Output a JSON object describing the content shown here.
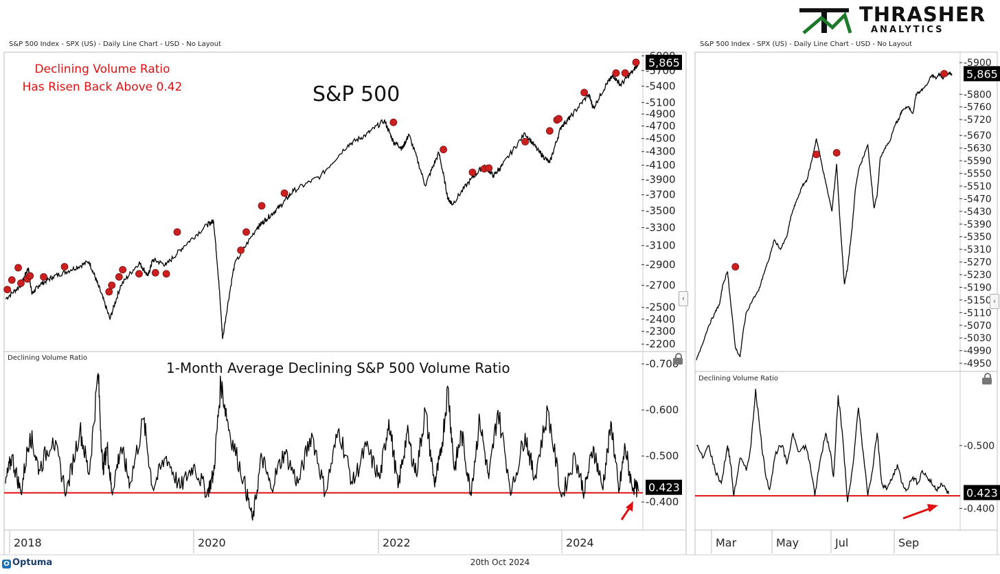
{
  "brand": {
    "logo_word": "THRASHER",
    "logo_sub": "ANALYTICS",
    "footer_brand": "Optuma",
    "footer_date": "20th Oct 2024"
  },
  "colors": {
    "price_line": "#000000",
    "marker": "#cc1f1f",
    "threshold_line": "#e01010",
    "annotation": "#e01010",
    "grid_border": "#bbbbbb"
  },
  "chart_data": [
    {
      "type": "line",
      "panel": "left-top",
      "header": "S&P 500 Index - SPX (US) - Daily Line Chart - USD - No Layout",
      "title": "S&P 500",
      "annotation": [
        "Declining Volume Ratio",
        "Has Risen Back Above 0.42"
      ],
      "scale": "log",
      "ylim": [
        2180,
        5990
      ],
      "y_ticks": [
        "6000",
        "5700",
        "5400",
        "5100",
        "4900",
        "4700",
        "4500",
        "4300",
        "4100",
        "3900",
        "3700",
        "3500",
        "3300",
        "3100",
        "2900",
        "2700",
        "2500",
        "2400",
        "2300",
        "2200"
      ],
      "last_value_label": "5,865",
      "x_range": [
        2017.83,
        2024.8
      ],
      "x_ticks": [
        "2018",
        "2020",
        "2022",
        "2024"
      ],
      "series": [
        {
          "name": "SPX",
          "x": [
            2017.83,
            2018.0,
            2018.08,
            2018.12,
            2018.2,
            2018.35,
            2018.55,
            2018.75,
            2018.85,
            2018.98,
            2019.1,
            2019.3,
            2019.4,
            2019.45,
            2019.6,
            2019.8,
            2020.05,
            2020.12,
            2020.18,
            2020.22,
            2020.35,
            2020.6,
            2020.7,
            2020.85,
            2021.0,
            2021.3,
            2021.6,
            2021.8,
            2022.0,
            2022.1,
            2022.2,
            2022.27,
            2022.45,
            2022.6,
            2022.7,
            2022.75,
            2022.95,
            2023.1,
            2023.2,
            2023.3,
            2023.55,
            2023.7,
            2023.82,
            2023.95,
            2024.05,
            2024.25,
            2024.3,
            2024.45,
            2024.52,
            2024.6,
            2024.75,
            2024.8
          ],
          "values": [
            2575,
            2700,
            2870,
            2620,
            2700,
            2780,
            2850,
            2930,
            2700,
            2400,
            2700,
            2920,
            2790,
            2950,
            2900,
            3100,
            3330,
            3380,
            2700,
            2240,
            2900,
            3300,
            3400,
            3550,
            3750,
            3950,
            4400,
            4560,
            4790,
            4450,
            4350,
            4560,
            3820,
            4280,
            3650,
            3580,
            3900,
            4100,
            3950,
            4100,
            4580,
            4300,
            4130,
            4700,
            4850,
            5250,
            5000,
            5450,
            5600,
            5420,
            5720,
            5865
          ]
        }
      ],
      "markers_x": [
        2017.85,
        2017.9,
        2017.97,
        2018.0,
        2018.07,
        2018.1,
        2018.25,
        2018.48,
        2018.97,
        2019.0,
        2019.08,
        2019.12,
        2019.3,
        2019.48,
        2019.6,
        2019.72,
        2020.42,
        2020.48,
        2020.65,
        2020.9,
        2022.1,
        2022.65,
        2022.97,
        2023.1,
        2023.15,
        2023.55,
        2023.82,
        2023.9,
        2023.92,
        2024.2,
        2024.55,
        2024.65,
        2024.77
      ],
      "markers_y": [
        2660,
        2750,
        2870,
        2720,
        2760,
        2790,
        2780,
        2880,
        2640,
        2700,
        2780,
        2850,
        2810,
        2820,
        2810,
        3250,
        3050,
        3250,
        3560,
        3720,
        4760,
        4330,
        4000,
        4050,
        4060,
        4450,
        4620,
        4800,
        4820,
        5280,
        5650,
        5650,
        5865
      ]
    },
    {
      "type": "line",
      "panel": "left-bottom",
      "header": "Declining Volume Ratio",
      "title": "1-Month Average Declining S&P 500 Volume Ratio",
      "ylim": [
        0.345,
        0.715
      ],
      "y_ticks": [
        "0.700",
        "0.600",
        "0.500",
        "0.400"
      ],
      "threshold": 0.42,
      "last_value_label": "0.423",
      "series": [
        {
          "name": "Declining Volume Ratio",
          "x": [
            2017.83,
            2017.9,
            2018.0,
            2018.1,
            2018.2,
            2018.35,
            2018.5,
            2018.65,
            2018.75,
            2018.85,
            2018.9,
            2018.95,
            2019.0,
            2019.1,
            2019.2,
            2019.35,
            2019.45,
            2019.6,
            2019.75,
            2019.9,
            2020.05,
            2020.12,
            2020.2,
            2020.3,
            2020.45,
            2020.55,
            2020.65,
            2020.75,
            2020.9,
            2021.05,
            2021.2,
            2021.35,
            2021.5,
            2021.65,
            2021.8,
            2021.95,
            2022.05,
            2022.15,
            2022.25,
            2022.35,
            2022.45,
            2022.55,
            2022.62,
            2022.7,
            2022.77,
            2022.85,
            2022.95,
            2023.05,
            2023.15,
            2023.25,
            2023.4,
            2023.55,
            2023.65,
            2023.8,
            2023.95,
            2024.1,
            2024.2,
            2024.3,
            2024.4,
            2024.5,
            2024.58,
            2024.65,
            2024.72,
            2024.8
          ],
          "values": [
            0.44,
            0.5,
            0.42,
            0.55,
            0.47,
            0.54,
            0.42,
            0.56,
            0.46,
            0.68,
            0.47,
            0.52,
            0.42,
            0.52,
            0.44,
            0.58,
            0.43,
            0.5,
            0.43,
            0.48,
            0.42,
            0.46,
            0.66,
            0.55,
            0.45,
            0.36,
            0.5,
            0.43,
            0.51,
            0.44,
            0.55,
            0.42,
            0.56,
            0.44,
            0.52,
            0.45,
            0.58,
            0.43,
            0.55,
            0.46,
            0.6,
            0.44,
            0.5,
            0.65,
            0.47,
            0.55,
            0.42,
            0.58,
            0.45,
            0.6,
            0.42,
            0.55,
            0.45,
            0.6,
            0.41,
            0.5,
            0.42,
            0.52,
            0.43,
            0.57,
            0.42,
            0.52,
            0.44,
            0.423
          ]
        }
      ]
    },
    {
      "type": "line",
      "panel": "right-top",
      "header": "S&P 500 Index - SPX (US) - Daily Line Chart - USD - No Layout",
      "ylim": [
        4935,
        5920
      ],
      "y_ticks": [
        "5900",
        "5800",
        "5760",
        "5720",
        "5670",
        "5630",
        "5590",
        "5550",
        "5510",
        "5470",
        "5430",
        "5390",
        "5350",
        "5310",
        "5270",
        "5230",
        "5190",
        "5150",
        "5110",
        "5070",
        "5030",
        "4990",
        "4950"
      ],
      "last_value_label": "5,865",
      "x_range": [
        2.0,
        10.2
      ],
      "x_ticks": [
        "Mar",
        "May",
        "Jul",
        "Sep"
      ],
      "series": [
        {
          "name": "SPX",
          "x": [
            2.0,
            2.15,
            2.4,
            2.6,
            2.75,
            2.85,
            3.0,
            3.1,
            3.25,
            3.4,
            3.5,
            3.6,
            3.8,
            4.0,
            4.15,
            4.3,
            4.5,
            4.7,
            4.9,
            5.05,
            5.2,
            5.4,
            5.55,
            5.7,
            5.85,
            6.0,
            6.15,
            6.35,
            6.5,
            6.6,
            6.75,
            6.85,
            7.0,
            7.1,
            7.2,
            7.35,
            7.5,
            7.6,
            7.7,
            7.8,
            7.9,
            8.05,
            8.2,
            8.4,
            8.5,
            8.6,
            8.8,
            8.95,
            9.05,
            9.2,
            9.4,
            9.55,
            9.7,
            9.8,
            9.9,
            10.0,
            10.1,
            10.2
          ],
          "values": [
            4960,
            5000,
            5070,
            5110,
            5140,
            5200,
            5240,
            5140,
            5000,
            4970,
            5050,
            5110,
            5150,
            5180,
            5230,
            5270,
            5340,
            5310,
            5350,
            5420,
            5460,
            5510,
            5530,
            5590,
            5660,
            5590,
            5520,
            5430,
            5580,
            5410,
            5200,
            5250,
            5380,
            5500,
            5560,
            5600,
            5640,
            5540,
            5440,
            5480,
            5600,
            5630,
            5650,
            5710,
            5720,
            5750,
            5760,
            5740,
            5800,
            5810,
            5830,
            5860,
            5850,
            5865,
            5850,
            5865,
            5865,
            5865
          ]
        }
      ],
      "markers_x": [
        3.25,
        5.85,
        6.5,
        9.95
      ],
      "markers_y": [
        5255,
        5610,
        5615,
        5865
      ]
    },
    {
      "type": "line",
      "panel": "right-bottom",
      "header": "Declining Volume Ratio",
      "ylim": [
        0.37,
        0.61
      ],
      "y_ticks": [
        "0.500",
        "0.400"
      ],
      "threshold": 0.42,
      "last_value_label": "0.423",
      "series": [
        {
          "name": "Declining Volume Ratio",
          "x": [
            2.0,
            2.2,
            2.4,
            2.6,
            2.8,
            3.0,
            3.1,
            3.2,
            3.4,
            3.6,
            3.75,
            3.9,
            4.05,
            4.2,
            4.35,
            4.55,
            4.75,
            4.9,
            5.1,
            5.3,
            5.5,
            5.65,
            5.8,
            5.95,
            6.15,
            6.3,
            6.4,
            6.55,
            6.7,
            6.85,
            7.05,
            7.2,
            7.35,
            7.5,
            7.65,
            7.8,
            7.95,
            8.1,
            8.3,
            8.45,
            8.6,
            8.75,
            8.95,
            9.1,
            9.25,
            9.4,
            9.55,
            9.7,
            9.85,
            10.0,
            10.1
          ],
          "values": [
            0.5,
            0.48,
            0.5,
            0.46,
            0.44,
            0.5,
            0.47,
            0.42,
            0.48,
            0.46,
            0.5,
            0.59,
            0.52,
            0.46,
            0.43,
            0.49,
            0.5,
            0.47,
            0.52,
            0.49,
            0.5,
            0.47,
            0.42,
            0.47,
            0.52,
            0.49,
            0.45,
            0.58,
            0.51,
            0.41,
            0.48,
            0.56,
            0.49,
            0.42,
            0.46,
            0.52,
            0.44,
            0.43,
            0.45,
            0.47,
            0.44,
            0.43,
            0.45,
            0.44,
            0.46,
            0.45,
            0.44,
            0.43,
            0.44,
            0.43,
            0.423
          ]
        }
      ]
    }
  ]
}
